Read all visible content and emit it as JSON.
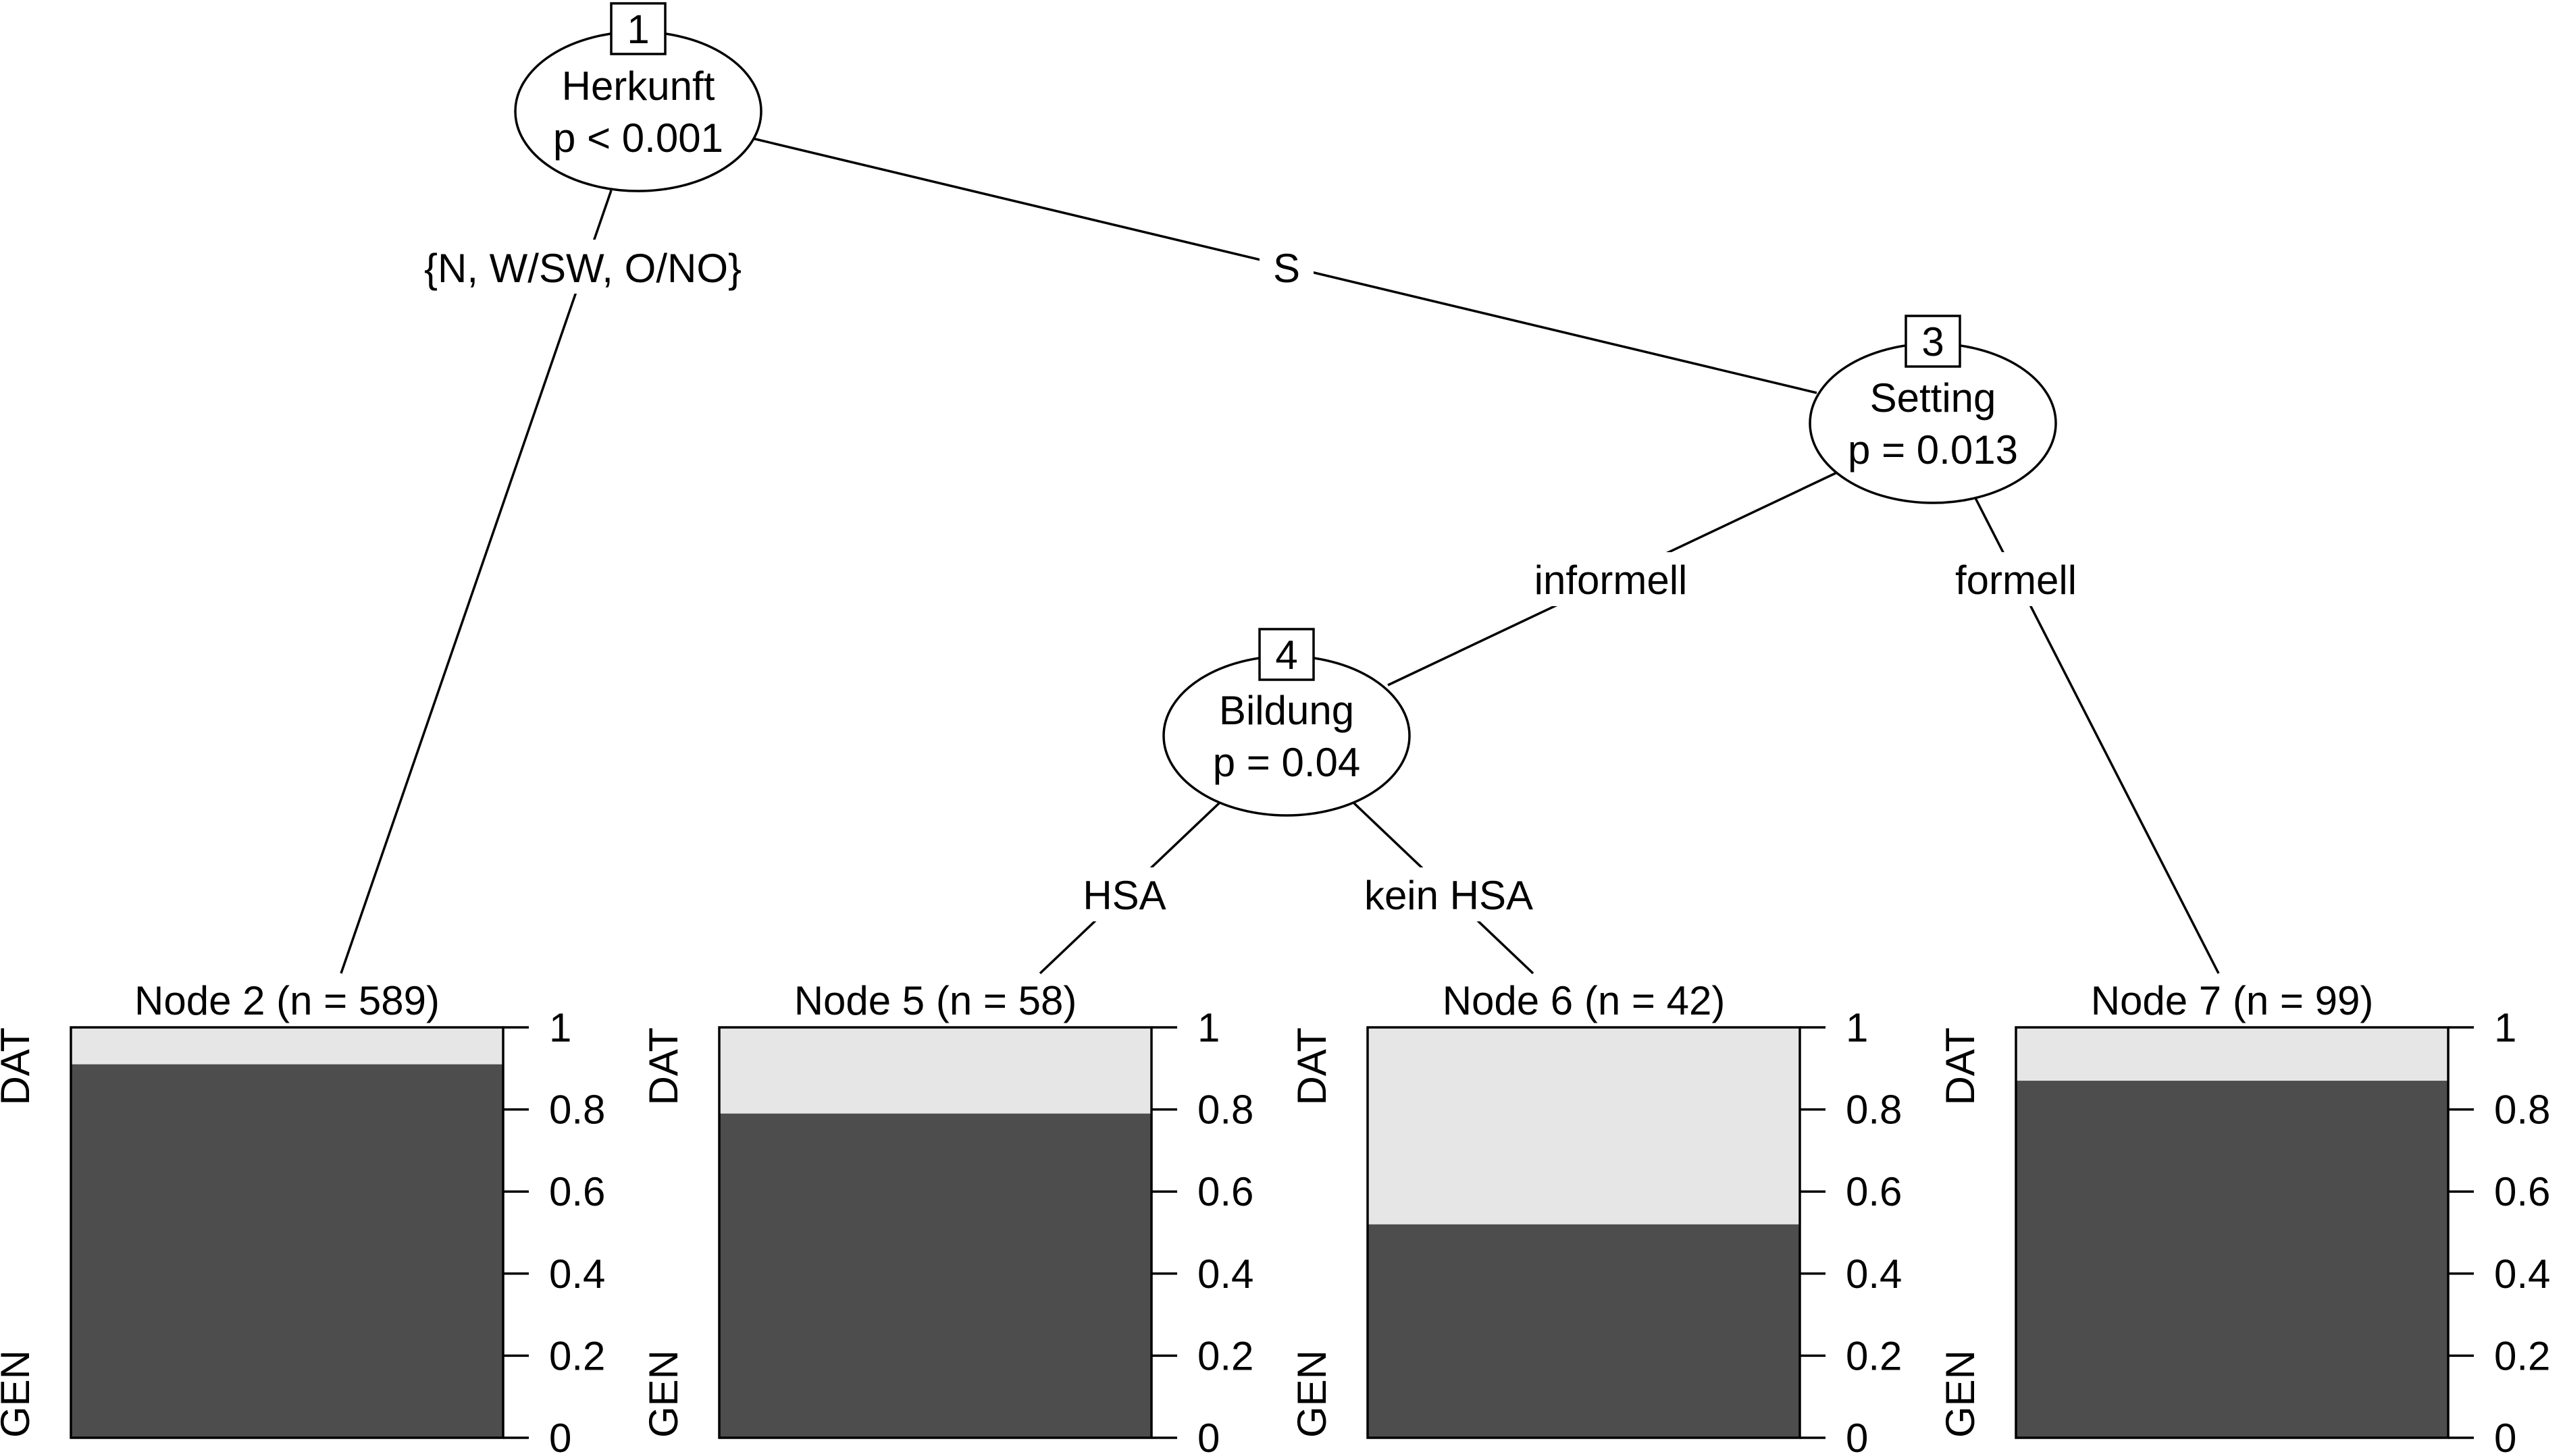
{
  "tree": {
    "inner_nodes": [
      {
        "id": "1",
        "variable": "Herkunft",
        "pvalue": "p < 0.001"
      },
      {
        "id": "3",
        "variable": "Setting",
        "pvalue": "p = 0.013"
      },
      {
        "id": "4",
        "variable": "Bildung",
        "pvalue": "p = 0.04"
      }
    ],
    "edges": [
      {
        "from": "1",
        "to": "2",
        "label": "{N, W/SW, O/NO}"
      },
      {
        "from": "1",
        "to": "3",
        "label": "S"
      },
      {
        "from": "3",
        "to": "4",
        "label": "informell"
      },
      {
        "from": "3",
        "to": "7",
        "label": "formell"
      },
      {
        "from": "4",
        "to": "5",
        "label": "HSA"
      },
      {
        "from": "4",
        "to": "6",
        "label": "kein HSA"
      }
    ],
    "terminal_nodes": [
      {
        "id": "2",
        "title": "Node 2 (n = 589)",
        "n": 589,
        "gen_share": 0.91
      },
      {
        "id": "5",
        "title": "Node 5 (n = 58)",
        "n": 58,
        "gen_share": 0.79
      },
      {
        "id": "6",
        "title": "Node 6 (n = 42)",
        "n": 42,
        "gen_share": 0.52
      },
      {
        "id": "7",
        "title": "Node 7 (n = 99)",
        "n": 99,
        "gen_share": 0.87
      }
    ],
    "categories": {
      "top": "DAT",
      "bottom": "GEN"
    },
    "axis_ticks": [
      "0",
      "0.2",
      "0.4",
      "0.6",
      "0.8",
      "1"
    ],
    "colors": {
      "gen": "#4d4d4d",
      "dat": "#e6e6e6"
    }
  }
}
